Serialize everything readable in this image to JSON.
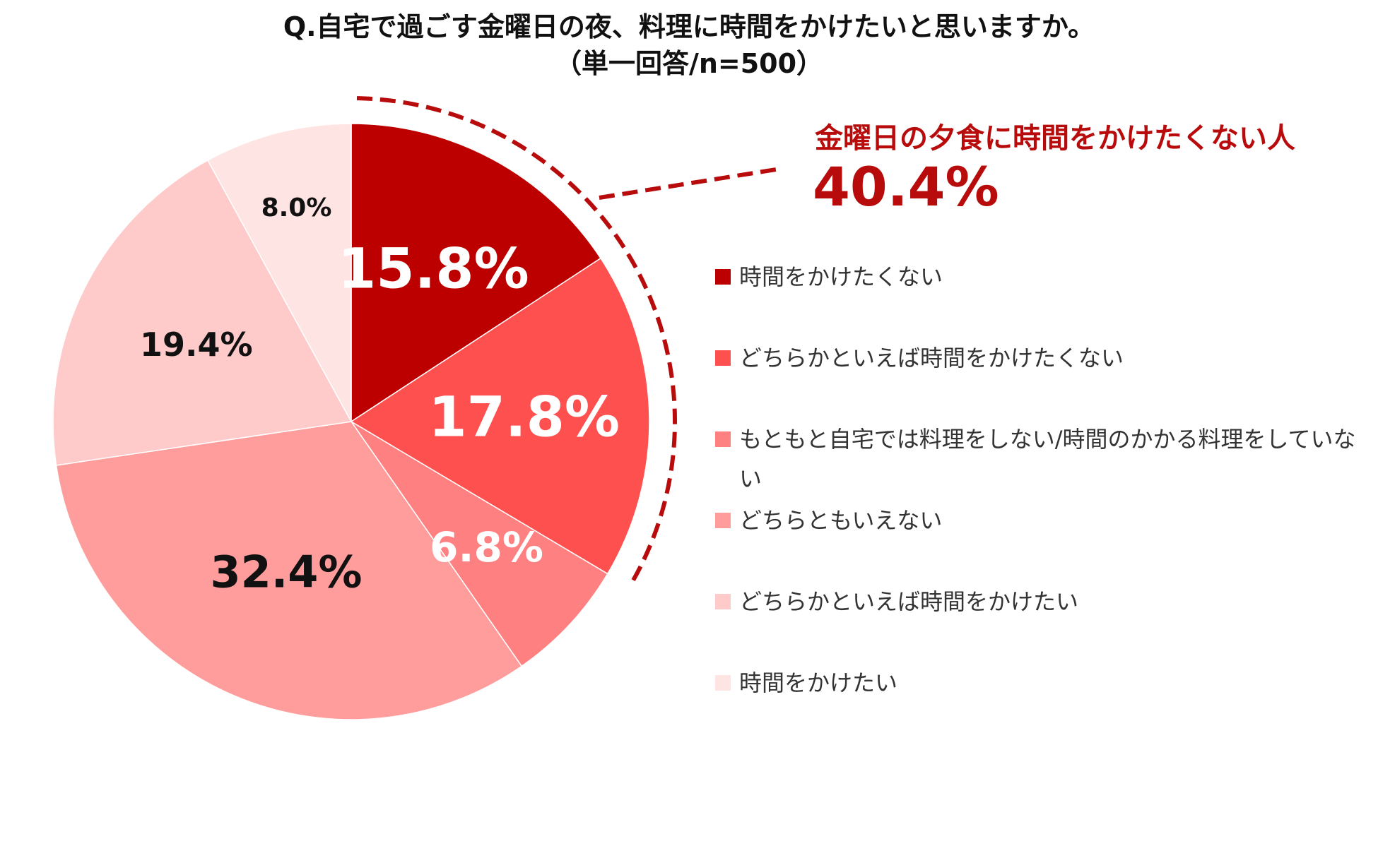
{
  "chart_data": {
    "type": "pie",
    "title": "Q.自宅で過ごす金曜日の夜、料理に時間をかけたいと思いますか。",
    "subtitle": "（単一回答/n=500）",
    "categories": [
      "時間をかけたくない",
      "どちらかといえば時間をかけたくない",
      "もともと自宅では料理をしない/時間のかかる料理をしていない",
      "どちらともいえない",
      "どちらかといえば時間をかけたい",
      "時間をかけたい"
    ],
    "values": [
      15.8,
      17.8,
      6.8,
      32.4,
      19.4,
      8.0
    ],
    "value_labels": [
      "15.8%",
      "17.8%",
      "6.8%",
      "32.4%",
      "19.4%",
      "8.0%"
    ],
    "colors": [
      "#bc0000",
      "#ff5050",
      "#ff8080",
      "#ff9c9c",
      "#ffcaca",
      "#ffe4e4"
    ],
    "label_colors": [
      "#ffffff",
      "#ffffff",
      "#ffffff",
      "#111111",
      "#111111",
      "#111111"
    ],
    "start_angle_deg": 0,
    "direction": "clockwise",
    "legend_position": "right",
    "annotation": {
      "label": "金曜日の夕食に時間をかけたくない人",
      "value": "40.4%",
      "color": "#b80c0c"
    }
  }
}
